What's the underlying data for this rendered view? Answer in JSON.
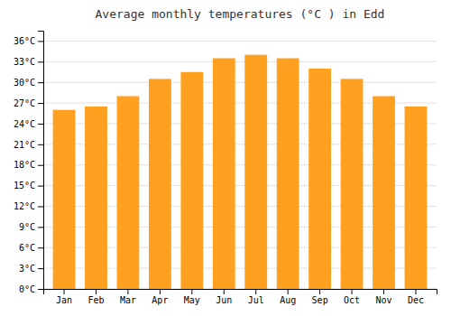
{
  "chart_data": {
    "type": "bar",
    "title": "Average monthly temperatures (°C ) in Edd",
    "categories": [
      "Jan",
      "Feb",
      "Mar",
      "Apr",
      "May",
      "Jun",
      "Jul",
      "Aug",
      "Sep",
      "Oct",
      "Nov",
      "Dec"
    ],
    "values": [
      26.0,
      26.5,
      28.0,
      30.5,
      31.5,
      33.5,
      34.0,
      33.5,
      32.0,
      30.5,
      28.0,
      26.5
    ],
    "color": "#FFA020",
    "ylim": [
      0,
      37.5
    ],
    "yticks": [
      {
        "value": 0,
        "label": "0°C"
      },
      {
        "value": 3,
        "label": "3°C"
      },
      {
        "value": 6,
        "label": "6°C"
      },
      {
        "value": 9,
        "label": "9°C"
      },
      {
        "value": 12,
        "label": "12°C"
      },
      {
        "value": 15,
        "label": "15°C"
      },
      {
        "value": 18,
        "label": "18°C"
      },
      {
        "value": 21,
        "label": "21°C"
      },
      {
        "value": 24,
        "label": "24°C"
      },
      {
        "value": 27,
        "label": "27°C"
      },
      {
        "value": 30,
        "label": "30°C"
      },
      {
        "value": 33,
        "label": "33°C"
      },
      {
        "value": 36,
        "label": "36°C"
      }
    ],
    "grid": true
  }
}
